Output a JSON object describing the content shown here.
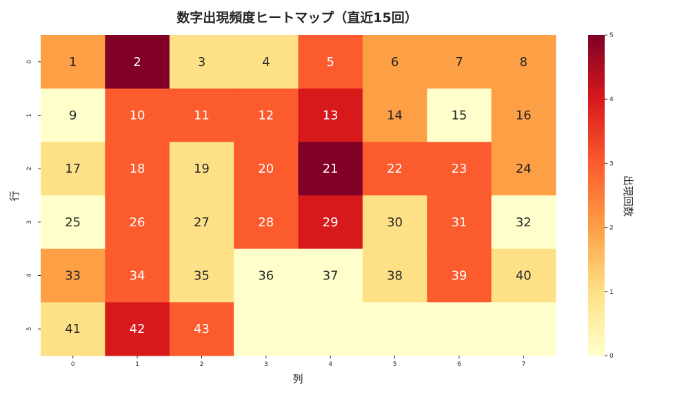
{
  "chart_data": {
    "type": "heatmap",
    "title": "数字出現頻度ヒートマップ（直近15回）",
    "xlabel": "列",
    "ylabel": "行",
    "x_tick_labels": [
      "0",
      "1",
      "2",
      "3",
      "4",
      "5",
      "6",
      "7"
    ],
    "y_tick_labels": [
      "0",
      "1",
      "2",
      "3",
      "4",
      "5"
    ],
    "cell_labels": [
      [
        "1",
        "2",
        "3",
        "4",
        "5",
        "6",
        "7",
        "8"
      ],
      [
        "9",
        "10",
        "11",
        "12",
        "13",
        "14",
        "15",
        "16"
      ],
      [
        "17",
        "18",
        "19",
        "20",
        "21",
        "22",
        "23",
        "24"
      ],
      [
        "25",
        "26",
        "27",
        "28",
        "29",
        "30",
        "31",
        "32"
      ],
      [
        "33",
        "34",
        "35",
        "36",
        "37",
        "38",
        "39",
        "40"
      ],
      [
        "41",
        "42",
        "43",
        "",
        "",
        "",
        "",
        ""
      ]
    ],
    "values": [
      [
        2,
        5,
        1,
        1,
        3,
        2,
        2,
        2
      ],
      [
        0,
        3,
        3,
        3,
        4,
        2,
        0,
        2
      ],
      [
        1,
        3,
        1,
        3,
        5,
        3,
        3,
        2
      ],
      [
        0,
        3,
        1,
        3,
        4,
        1,
        3,
        0
      ],
      [
        2,
        3,
        1,
        0,
        0,
        1,
        3,
        1
      ],
      [
        1,
        4,
        3,
        0,
        0,
        0,
        0,
        0
      ]
    ],
    "colorbar": {
      "label": "出現回数",
      "range": [
        0,
        5
      ],
      "ticks": [
        "0",
        "1",
        "2",
        "3",
        "4",
        "5"
      ],
      "colormap": "YlOrRd"
    },
    "colors": {
      "0": "#ffffcc",
      "1": "#fee087",
      "2": "#fd9f44",
      "3": "#fc5b2e",
      "4": "#d7191c",
      "5": "#800026",
      "light_text": "#262626",
      "dark_text": "#ffffff"
    }
  }
}
